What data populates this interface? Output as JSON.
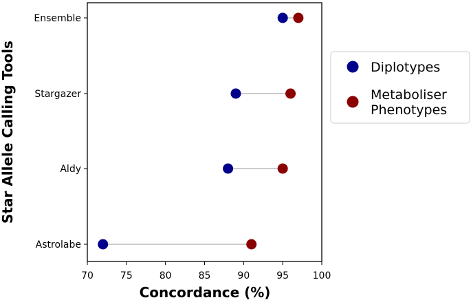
{
  "chart_data": {
    "type": "dumbbell",
    "xlabel": "Concordance (%)",
    "ylabel": "Star Allele Calling Tools",
    "xlim": [
      70,
      100
    ],
    "xticks": [
      70,
      75,
      80,
      85,
      90,
      95,
      100
    ],
    "categories": [
      "Ensemble",
      "Stargazer",
      "Aldy",
      "Astrolabe"
    ],
    "series": [
      {
        "name": "Diplotypes",
        "color": "#00008b",
        "values": [
          95,
          89,
          88,
          72
        ]
      },
      {
        "name": "Metaboliser Phenotypes",
        "color": "#8b0000",
        "values": [
          97,
          96,
          95,
          91
        ]
      }
    ],
    "legend": {
      "placement": "right",
      "entries": [
        {
          "lines": [
            "Diplotypes"
          ],
          "color": "#00008b"
        },
        {
          "lines": [
            "Metaboliser",
            "Phenotypes"
          ],
          "color": "#8b0000"
        }
      ]
    },
    "grid": false,
    "connector_color": "#cccccc"
  }
}
